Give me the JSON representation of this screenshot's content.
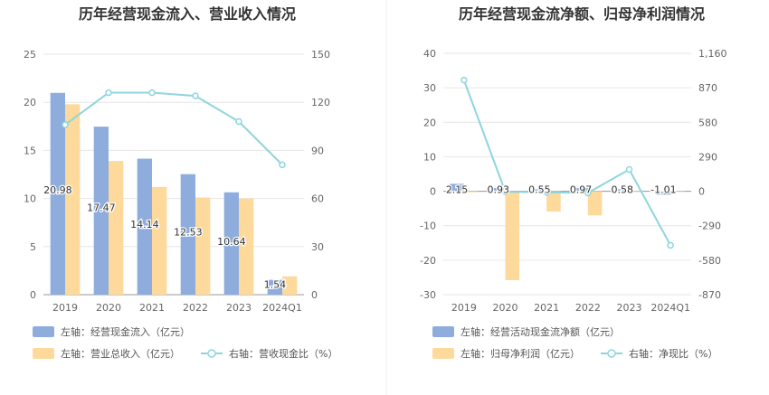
{
  "chart_data": [
    {
      "type": "bar",
      "title": "历年经营现金流入、营业收入情况",
      "categories": [
        "2019",
        "2020",
        "2021",
        "2022",
        "2023",
        "2024Q1"
      ],
      "left_axis": {
        "ylim": [
          0,
          25
        ],
        "ticks": [
          "0",
          "5",
          "10",
          "15",
          "20",
          "25"
        ]
      },
      "right_axis": {
        "ylim": [
          0,
          150
        ],
        "ticks": [
          "0",
          "30",
          "60",
          "90",
          "120",
          "150"
        ]
      },
      "series": [
        {
          "name": "左轴：经营现金流入（亿元）",
          "axis": "left",
          "type": "bar",
          "color": "#8eaddc",
          "values": [
            20.98,
            17.47,
            14.14,
            12.53,
            10.64,
            1.54
          ],
          "labels": [
            "20.98",
            "17.47",
            "14.14",
            "12.53",
            "10.64",
            "1.54"
          ]
        },
        {
          "name": "左轴：营业总收入（亿元）",
          "axis": "left",
          "type": "bar",
          "color": "#fdd99b",
          "values": [
            19.8,
            13.9,
            11.2,
            10.1,
            10.0,
            1.9
          ]
        },
        {
          "name": "右轴：营收现金比（%）",
          "axis": "right",
          "type": "line",
          "color": "#8fd5de",
          "values": [
            106,
            126,
            126,
            124,
            108,
            81
          ]
        }
      ],
      "legend_placement": "bottom"
    },
    {
      "type": "bar",
      "title": "历年经营现金流净额、归母净利润情况",
      "categories": [
        "2019",
        "2020",
        "2021",
        "2022",
        "2023",
        "2024Q1"
      ],
      "left_axis": {
        "ylim": [
          -30,
          40
        ],
        "ticks": [
          "-30",
          "-20",
          "-10",
          "0",
          "10",
          "20",
          "30",
          "40"
        ]
      },
      "right_axis": {
        "ylim": [
          -870,
          1160
        ],
        "ticks": [
          "-870",
          "-580",
          "-290",
          "0",
          "290",
          "580",
          "870",
          "1,160"
        ]
      },
      "series": [
        {
          "name": "左轴：经营活动现金流净额（亿元）",
          "axis": "left",
          "type": "bar",
          "color": "#8eaddc",
          "values": [
            2.15,
            0.93,
            0.55,
            0.97,
            0.58,
            -1.01
          ],
          "labels": [
            "2.15",
            "0.93",
            "0.55",
            "0.97",
            "0.58",
            "-1.01"
          ]
        },
        {
          "name": "左轴：归母净利润（亿元）",
          "axis": "left",
          "type": "bar",
          "color": "#fdd99b",
          "values": [
            -0.3,
            -25.8,
            -5.9,
            -7.0,
            -0.1,
            -0.05
          ]
        },
        {
          "name": "右轴：净现比（%）",
          "axis": "right",
          "type": "line",
          "color": "#8fd5de",
          "values": [
            935,
            -4,
            -9,
            -14,
            183,
            -455
          ]
        }
      ],
      "legend_placement": "bottom"
    }
  ]
}
